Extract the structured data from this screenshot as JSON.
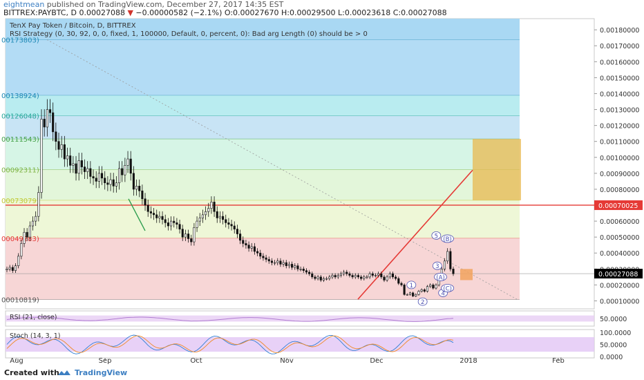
{
  "header": {
    "author": "eightmean",
    "published": " published on TradingView.com, December 27, 2017 14:35 EST",
    "symbol": "BITTREX:PAYBTC, D",
    "last": "0.00027088",
    "change_arrow": "▼",
    "change": "−0.00000582 (−2.1%)",
    "ohlc": "O:0.00027670 H:0.00029500 L:0.00023618 C:0.00027088"
  },
  "legend": {
    "title": "TenX Pay Token / Bitcoin, D, BITTREX",
    "strategy": "RSI Strategy (0, 30, 92, 0, 0, fixed, 1, 100000, Default, 0, percent, 0): Bad arg Length (0) should be > 0"
  },
  "footer": {
    "created": "Created with",
    "brand": "TradingView"
  },
  "chart_data": [
    {
      "type": "candlestick",
      "title": "TenX Pay Token / Bitcoin, D, BITTREX",
      "x_tick_labels": [
        "Aug",
        "Sep",
        "Oct",
        "Nov",
        "Dec",
        "2018",
        "Feb"
      ],
      "y_ticks": [
        0.0001,
        0.0002,
        0.0003,
        0.0004,
        0.0005,
        0.0006,
        0.0007,
        0.0008,
        0.0009,
        0.001,
        0.0011,
        0.0012,
        0.0013,
        0.0014,
        0.0015,
        0.0016,
        0.0017,
        0.0018
      ],
      "y_tick_labels": [
        "0.00010000",
        "0.00020000",
        "0.00030000",
        "0.00040000",
        "0.00050000",
        "0.00060000",
        "0.00070000",
        "0.00080000",
        "0.00090000",
        "0.00100000",
        "0.00110000",
        "0.00120000",
        "0.00130000",
        "0.00140000",
        "0.00150000",
        "0.00160000",
        "0.00170000",
        "0.00180000"
      ],
      "ylim": [
        5e-05,
        0.00187
      ],
      "price_labels": [
        {
          "value": 0.00070025,
          "text": "0.00070025",
          "color": "#e53935"
        },
        {
          "value": 0.00027088,
          "text": "0.00027088",
          "color": "#000000"
        }
      ],
      "fib_levels": [
        {
          "label": "00173803)",
          "value": 0.00173803,
          "color": "#1e88b5"
        },
        {
          "label": "00138924)",
          "value": 0.00138924,
          "color": "#1e88b5"
        },
        {
          "label": "00126048)",
          "value": 0.00126048,
          "color": "#26a69a"
        },
        {
          "label": "00111543)",
          "value": 0.00111543,
          "color": "#43a047"
        },
        {
          "label": "00092311)",
          "value": 0.00092311,
          "color": "#7cb342"
        },
        {
          "label": "00073079)",
          "value": 0.00073079,
          "color": "#c0ca33"
        },
        {
          "label": "00049283)",
          "value": 0.00049283,
          "color": "#e53935"
        },
        {
          "label": "00010819)",
          "value": 0.00010819,
          "color": "#555555"
        }
      ],
      "series": [
        {
          "values": [
            0.0003,
            0.00031,
            0.00029,
            0.00032,
            0.00038,
            0.00046,
            0.00053,
            0.0005,
            0.00057,
            0.0006,
            0.00063,
            0.00078,
            0.00124,
            0.00119,
            0.0013,
            0.00128,
            0.00116,
            0.0011,
            0.00105,
            0.00108,
            0.00099,
            0.00101,
            0.00095,
            0.00096,
            0.0009,
            0.00098,
            0.00094,
            0.00091,
            0.00093,
            0.00088,
            0.00087,
            0.00085,
            0.0009,
            0.00087,
            0.00084,
            0.00083,
            0.00086,
            0.00082,
            0.00084,
            0.00093,
            0.00089,
            0.00095,
            0.00099,
            0.0009,
            0.0008,
            0.00082,
            0.00079,
            0.00074,
            0.0007,
            0.00066,
            0.00065,
            0.00064,
            0.00062,
            0.00063,
            0.00061,
            0.00059,
            0.00057,
            0.0006,
            0.00059,
            0.00058,
            0.00055,
            0.0005,
            0.00052,
            0.00049,
            0.00047,
            0.00056,
            0.0006,
            0.00062,
            0.00064,
            0.00066,
            0.00068,
            0.00072,
            0.00066,
            0.00062,
            0.00063,
            0.00061,
            0.00059,
            0.00058,
            0.00057,
            0.00055,
            0.00052,
            0.00048,
            0.00046,
            0.00045,
            0.00043,
            0.00044,
            0.00041,
            0.0004,
            0.00038,
            0.00037,
            0.00036,
            0.00035,
            0.00034,
            0.00034,
            0.00035,
            0.00033,
            0.00034,
            0.00032,
            0.00033,
            0.00031,
            0.00032,
            0.0003,
            0.0003,
            0.00029,
            0.00028,
            0.00027,
            0.00025,
            0.00024,
            0.00025,
            0.00023,
            0.00024,
            0.00024,
            0.00025,
            0.00026,
            0.00025,
            0.00026,
            0.00027,
            0.00028,
            0.00027,
            0.00026,
            0.00025,
            0.00026,
            0.00025,
            0.00024,
            0.00025,
            0.00025,
            0.00027,
            0.00026,
            0.00026,
            0.00027,
            0.00025,
            0.00023,
            0.00025,
            0.00027,
            0.00025,
            0.00024,
            0.00021,
            0.0002,
            0.00014,
            0.00014,
            0.00015,
            0.00013,
            0.00014,
            0.00016,
            0.00017,
            0.00016,
            0.00019,
            0.0002,
            0.00018,
            0.0002,
            0.00024,
            0.0003,
            0.00035,
            0.00041,
            0.0003,
            0.00027
          ]
        }
      ],
      "projection_box": {
        "x_label": "2018",
        "range": [
          0.00073079,
          0.00111543
        ]
      },
      "small_box": {
        "range": [
          0.00023,
          0.0003
        ]
      },
      "wave_labels": [
        "1",
        "2",
        "3",
        "4",
        "5",
        "(A)",
        "(B)",
        "(C)"
      ]
    },
    {
      "type": "line",
      "title": "RSI (21, close)",
      "y_tick_labels": [
        "50.0000"
      ],
      "ylim": [
        0,
        100
      ],
      "band": [
        30,
        70
      ]
    },
    {
      "type": "line",
      "title": "Stoch (14, 3, 1)",
      "y_tick_labels": [
        "100.0000",
        "50.0000",
        "0.0000"
      ],
      "ylim": [
        0,
        100
      ],
      "band": [
        20,
        80
      ]
    }
  ]
}
